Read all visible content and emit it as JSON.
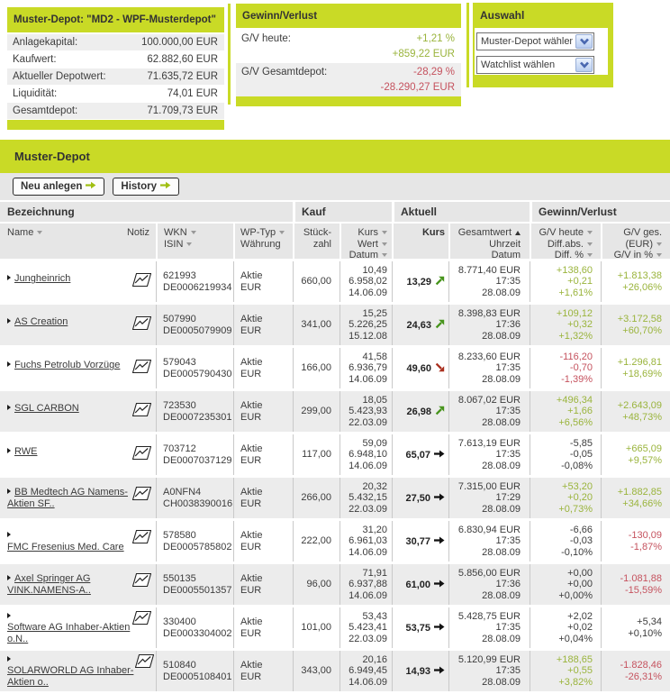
{
  "colors": {
    "lime": "#c9da26",
    "positive": "#9ab43c",
    "negative": "#c5525e",
    "arrow_up": "#47941c",
    "arrow_down": "#aa3120",
    "arrow_flat": "#111111"
  },
  "depot_panel": {
    "title": "Muster-Depot: \"MD2 - WPF-Musterdepot\"",
    "rows": [
      {
        "label": "Anlagekapital:",
        "value": "100.000,00 EUR"
      },
      {
        "label": "Kaufwert:",
        "value": "62.882,60 EUR"
      },
      {
        "label": "Aktueller Depotwert:",
        "value": "71.635,72 EUR"
      },
      {
        "label": "Liquidität:",
        "value": "74,01 EUR"
      },
      {
        "label": "Gesamtdepot:",
        "value": "71.709,73 EUR"
      }
    ]
  },
  "gv_panel": {
    "title": "Gewinn/Verlust",
    "rows": [
      {
        "label": "G/V heute:",
        "percent": "+1,21 %",
        "amount": "+859,22 EUR",
        "color": "green"
      },
      {
        "label": "G/V Gesamtdepot:",
        "percent": "-28,29 %",
        "amount": "-28.290,27 EUR",
        "color": "red"
      }
    ]
  },
  "auswahl_panel": {
    "title": "Auswahl",
    "selects": [
      "Muster-Depot wählen",
      "Watchlist wählen"
    ]
  },
  "table": {
    "title": "Muster-Depot",
    "buttons": [
      {
        "label": "Neu anlegen"
      },
      {
        "label": "History"
      }
    ],
    "groups": [
      "Bezeichnung",
      "Kauf",
      "Aktuell",
      "Gewinn/Verlust"
    ],
    "columns": {
      "name": "Name",
      "notiz": "Notiz",
      "wkn": "WKN",
      "isin": "ISIN",
      "wp_typ": "WP-Typ",
      "waehrung": "Währung",
      "stueck1": "Stück-",
      "stueck2": "zahl",
      "kurs": "Kurs",
      "wert": "Wert",
      "datum": "Datum",
      "kurs_akt": "Kurs",
      "gesamtwert": "Gesamtwert",
      "uhrzeit": "Uhrzeit",
      "datum_akt": "Datum",
      "gv_heute": "G/V heute",
      "diff_abs": "Diff.abs.",
      "diff_pct": "Diff. %",
      "gv_ges1": "G/V ges.",
      "gv_ges2": "(EUR)",
      "gv_in_pct": "G/V in %"
    },
    "rows": [
      {
        "name": "Jungheinrich",
        "wkn": "621993",
        "isin": "DE0006219934",
        "typ": "Aktie",
        "waehrung": "EUR",
        "stueck": "660,00",
        "kauf": [
          "10,49",
          "6.958,02",
          "14.06.09"
        ],
        "kurs": "13,29",
        "trend": "up",
        "aktuell": [
          "8.771,40 EUR",
          "17:35",
          "28.08.09"
        ],
        "gv_heute": [
          "+138,60",
          "+0,21",
          "+1,61%"
        ],
        "gv_heute_color": "green",
        "gv_ges": [
          "+1.813,38",
          "+26,06%"
        ],
        "gv_ges_color": "green"
      },
      {
        "name": "AS Creation",
        "wkn": "507990",
        "isin": "DE0005079909",
        "typ": "Aktie",
        "waehrung": "EUR",
        "stueck": "341,00",
        "kauf": [
          "15,25",
          "5.226,25",
          "15.12.08"
        ],
        "kurs": "24,63",
        "trend": "up",
        "aktuell": [
          "8.398,83 EUR",
          "17:36",
          "28.08.09"
        ],
        "gv_heute": [
          "+109,12",
          "+0,32",
          "+1,32%"
        ],
        "gv_heute_color": "green",
        "gv_ges": [
          "+3.172,58",
          "+60,70%"
        ],
        "gv_ges_color": "green"
      },
      {
        "name": "Fuchs Petrolub Vorzüge",
        "wkn": "579043",
        "isin": "DE0005790430",
        "typ": "Aktie",
        "waehrung": "EUR",
        "stueck": "166,00",
        "kauf": [
          "41,58",
          "6.936,79",
          "14.06.09"
        ],
        "kurs": "49,60",
        "trend": "down",
        "aktuell": [
          "8.233,60 EUR",
          "17:35",
          "28.08.09"
        ],
        "gv_heute": [
          "-116,20",
          "-0,70",
          "-1,39%"
        ],
        "gv_heute_color": "red",
        "gv_ges": [
          "+1.296,81",
          "+18,69%"
        ],
        "gv_ges_color": "green"
      },
      {
        "name": "SGL CARBON",
        "wkn": "723530",
        "isin": "DE0007235301",
        "typ": "Aktie",
        "waehrung": "EUR",
        "stueck": "299,00",
        "kauf": [
          "18,05",
          "5.423,93",
          "22.03.09"
        ],
        "kurs": "26,98",
        "trend": "up",
        "aktuell": [
          "8.067,02 EUR",
          "17:35",
          "28.08.09"
        ],
        "gv_heute": [
          "+496,34",
          "+1,66",
          "+6,56%"
        ],
        "gv_heute_color": "green",
        "gv_ges": [
          "+2.643,09",
          "+48,73%"
        ],
        "gv_ges_color": "green"
      },
      {
        "name": "RWE",
        "wkn": "703712",
        "isin": "DE0007037129",
        "typ": "Aktie",
        "waehrung": "EUR",
        "stueck": "117,00",
        "kauf": [
          "59,09",
          "6.948,10",
          "14.06.09"
        ],
        "kurs": "65,07",
        "trend": "flat",
        "aktuell": [
          "7.613,19 EUR",
          "17:35",
          "28.08.09"
        ],
        "gv_heute": [
          "-5,85",
          "-0,05",
          "-0,08%"
        ],
        "gv_heute_color": "black",
        "gv_ges": [
          "+665,09",
          "+9,57%"
        ],
        "gv_ges_color": "green"
      },
      {
        "name": "BB Medtech AG Namens-\nAktien SF..",
        "wkn": "A0NFN4",
        "isin": "CH0038390016",
        "typ": "Aktie",
        "waehrung": "EUR",
        "stueck": "266,00",
        "kauf": [
          "20,32",
          "5.432,15",
          "22.03.09"
        ],
        "kurs": "27,50",
        "trend": "flat",
        "aktuell": [
          "7.315,00 EUR",
          "17:29",
          "28.08.09"
        ],
        "gv_heute": [
          "+53,20",
          "+0,20",
          "+0,73%"
        ],
        "gv_heute_color": "green",
        "gv_ges": [
          "+1.882,85",
          "+34,66%"
        ],
        "gv_ges_color": "green"
      },
      {
        "name": "FMC Fresenius Med. Care",
        "wkn": "578580",
        "isin": "DE0005785802",
        "typ": "Aktie",
        "waehrung": "EUR",
        "stueck": "222,00",
        "kauf": [
          "31,20",
          "6.961,03",
          "14.06.09"
        ],
        "kurs": "30,77",
        "trend": "flat",
        "aktuell": [
          "6.830,94 EUR",
          "17:35",
          "28.08.09"
        ],
        "gv_heute": [
          "-6,66",
          "-0,03",
          "-0,10%"
        ],
        "gv_heute_color": "black",
        "gv_ges": [
          "-130,09",
          "-1,87%"
        ],
        "gv_ges_color": "red"
      },
      {
        "name": "Axel Springer AG\nVINK.NAMENS-A..",
        "wkn": "550135",
        "isin": "DE0005501357",
        "typ": "Aktie",
        "waehrung": "EUR",
        "stueck": "96,00",
        "kauf": [
          "71,91",
          "6.937,88",
          "14.06.09"
        ],
        "kurs": "61,00",
        "trend": "flat",
        "aktuell": [
          "5.856,00 EUR",
          "17:36",
          "28.08.09"
        ],
        "gv_heute": [
          "+0,00",
          "+0,00",
          "+0,00%"
        ],
        "gv_heute_color": "black",
        "gv_ges": [
          "-1.081,88",
          "-15,59%"
        ],
        "gv_ges_color": "red"
      },
      {
        "name": "Software AG Inhaber-Aktien\no.N..",
        "wkn": "330400",
        "isin": "DE0003304002",
        "typ": "Aktie",
        "waehrung": "EUR",
        "stueck": "101,00",
        "kauf": [
          "53,43",
          "5.423,41",
          "22.03.09"
        ],
        "kurs": "53,75",
        "trend": "flat",
        "aktuell": [
          "5.428,75 EUR",
          "17:35",
          "28.08.09"
        ],
        "gv_heute": [
          "+2,02",
          "+0,02",
          "+0,04%"
        ],
        "gv_heute_color": "black",
        "gv_ges": [
          "+5,34",
          "+0,10%"
        ],
        "gv_ges_color": "black"
      },
      {
        "name": "SOLARWORLD AG Inhaber-\nAktien o..",
        "wkn": "510840",
        "isin": "DE0005108401",
        "typ": "Aktie",
        "waehrung": "EUR",
        "stueck": "343,00",
        "kauf": [
          "20,16",
          "6.949,45",
          "14.06.09"
        ],
        "kurs": "14,93",
        "trend": "flat",
        "aktuell": [
          "5.120,99 EUR",
          "17:35",
          "28.08.09"
        ],
        "gv_heute": [
          "+188,65",
          "+0,55",
          "+3,82%"
        ],
        "gv_heute_color": "green",
        "gv_ges": [
          "-1.828,46",
          "-26,31%"
        ],
        "gv_ges_color": "red"
      }
    ]
  }
}
